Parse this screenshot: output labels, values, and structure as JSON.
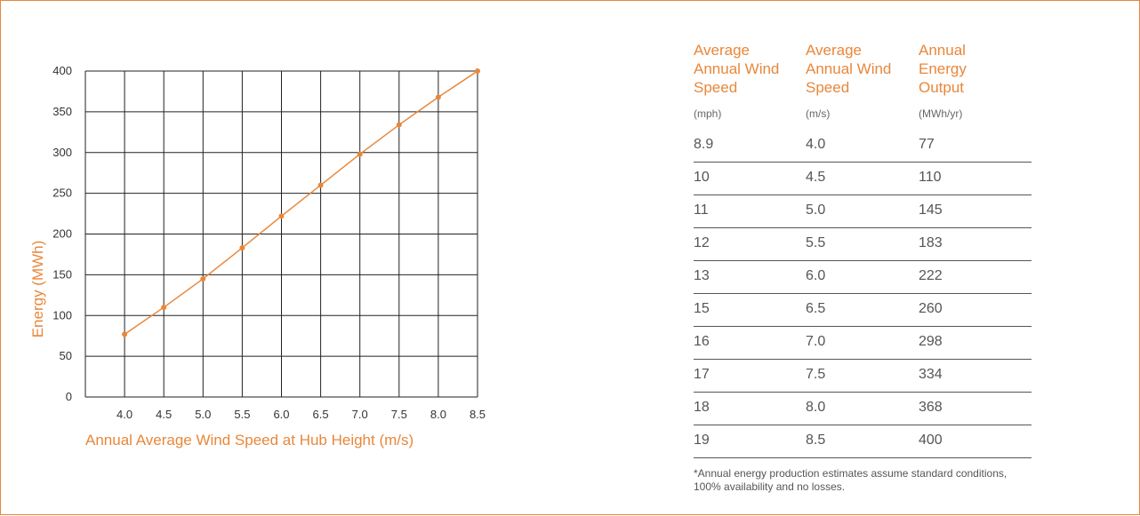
{
  "colors": {
    "accent": "#e8873a",
    "grid": "#222222",
    "text": "#333333"
  },
  "chart_data": {
    "type": "line",
    "xlabel": "Annual Average Wind Speed at Hub Height (m/s)",
    "ylabel": "Energy (MWh)",
    "x": [
      4.0,
      4.5,
      5.0,
      5.5,
      6.0,
      6.5,
      7.0,
      7.5,
      8.0,
      8.5
    ],
    "y": [
      77,
      110,
      145,
      183,
      222,
      260,
      298,
      334,
      368,
      400
    ],
    "x_ticks": [
      "4.0",
      "4.5",
      "5.0",
      "5.5",
      "6.0",
      "6.5",
      "7.0",
      "7.5",
      "8.0",
      "8.5"
    ],
    "y_ticks": [
      "0",
      "50",
      "100",
      "150",
      "200",
      "250",
      "300",
      "350",
      "400"
    ],
    "xlim": [
      3.5,
      8.5
    ],
    "ylim": [
      0,
      400
    ],
    "grid": true,
    "marker": "circle"
  },
  "table": {
    "columns": [
      {
        "title": "Average\nAnnual Wind\nSpeed",
        "unit": "(mph)"
      },
      {
        "title": "Average\nAnnual Wind\nSpeed",
        "unit": "(m/s)"
      },
      {
        "title": "Annual\nEnergy\nOutput",
        "unit": "(MWh/yr)"
      }
    ],
    "rows": [
      [
        "8.9",
        "4.0",
        "77"
      ],
      [
        "10",
        "4.5",
        "110"
      ],
      [
        "11",
        "5.0",
        "145"
      ],
      [
        "12",
        "5.5",
        "183"
      ],
      [
        "13",
        "6.0",
        "222"
      ],
      [
        "15",
        "6.5",
        "260"
      ],
      [
        "16",
        "7.0",
        "298"
      ],
      [
        "17",
        "7.5",
        "334"
      ],
      [
        "18",
        "8.0",
        "368"
      ],
      [
        "19",
        "8.5",
        "400"
      ]
    ],
    "footnote": "*Annual energy production estimates assume standard conditions, 100% availability and no losses."
  }
}
